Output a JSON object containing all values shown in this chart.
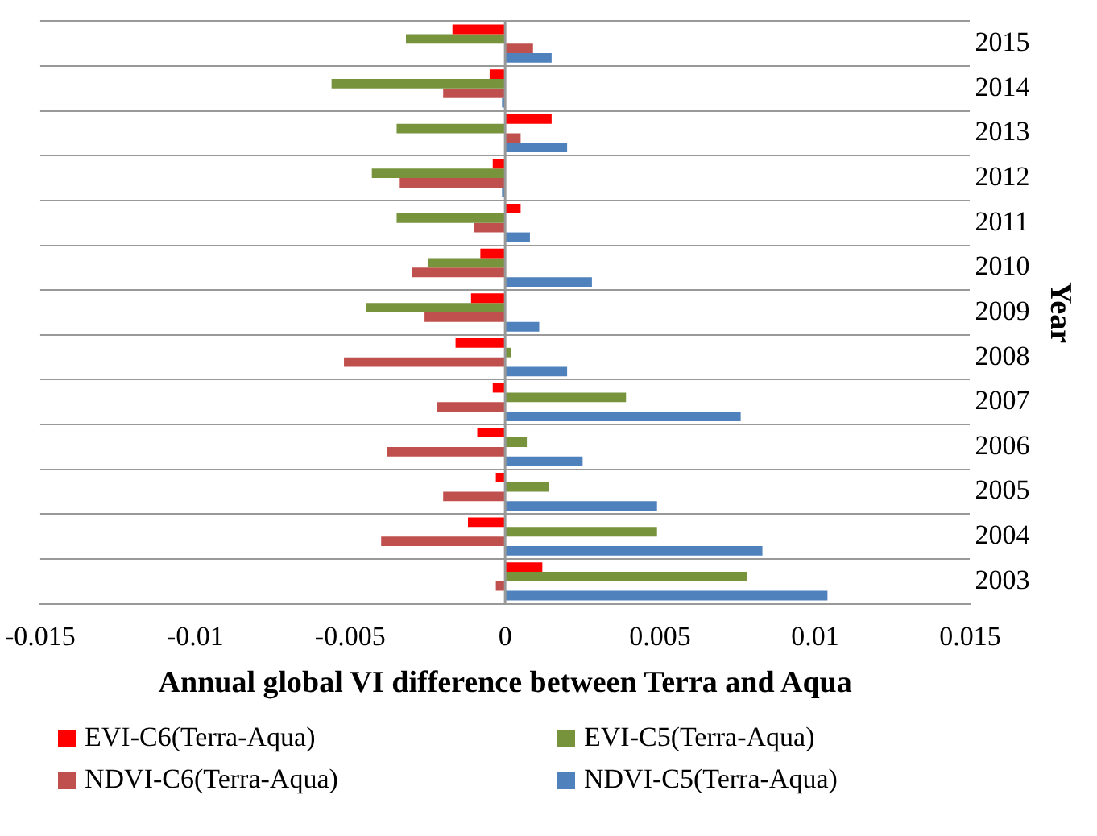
{
  "chart_data": {
    "type": "bar",
    "orientation": "horizontal",
    "xlabel": "Annual global VI difference between Terra and Aqua",
    "ylabel": "Year",
    "categories": [
      "2015",
      "2014",
      "2013",
      "2012",
      "2011",
      "2010",
      "2009",
      "2008",
      "2007",
      "2006",
      "2005",
      "2004",
      "2003"
    ],
    "series": [
      {
        "name": "EVI-C6(Terra-Aqua)",
        "color": "#ff0000",
        "values": [
          -0.0017,
          -0.0005,
          0.0015,
          -0.0004,
          0.0005,
          -0.0008,
          -0.0011,
          -0.0016,
          -0.0004,
          -0.0009,
          -0.0003,
          -0.0012,
          0.0012
        ]
      },
      {
        "name": "EVI-C5(Terra-Aqua)",
        "color": "#77933c",
        "values": [
          -0.0032,
          -0.0056,
          -0.0035,
          -0.0043,
          -0.0035,
          -0.0025,
          -0.0045,
          0.0002,
          0.0039,
          0.0007,
          0.0014,
          0.0049,
          0.0078
        ]
      },
      {
        "name": "NDVI-C6(Terra-Aqua)",
        "color": "#c0504d",
        "values": [
          0.0009,
          -0.002,
          0.0005,
          -0.0034,
          -0.001,
          -0.003,
          -0.0026,
          -0.0052,
          -0.0022,
          -0.0038,
          -0.002,
          -0.004,
          -0.0003
        ]
      },
      {
        "name": "NDVI-C5(Terra-Aqua)",
        "color": "#4f81bd",
        "values": [
          0.0015,
          -0.0001,
          0.002,
          -0.0001,
          0.0008,
          0.0028,
          0.0011,
          0.002,
          0.0076,
          0.0025,
          0.0049,
          0.0083,
          0.0104
        ]
      }
    ],
    "xlim": [
      -0.015,
      0.015
    ],
    "xticks": [
      -0.015,
      -0.01,
      -0.005,
      0,
      0.005,
      0.01,
      0.015
    ],
    "grid": "y",
    "legend": "bottom"
  }
}
